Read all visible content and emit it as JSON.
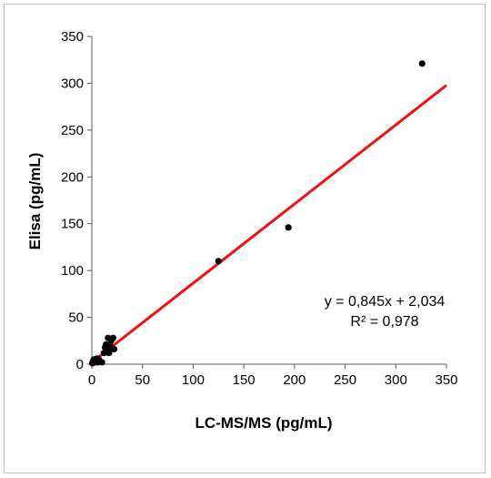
{
  "chart_data": {
    "type": "scatter",
    "title": "",
    "xlabel": "LC-MS/MS (pg/mL)",
    "ylabel": "Elisa (pg/mL)",
    "xlim": [
      0,
      350
    ],
    "ylim": [
      0,
      350
    ],
    "xticks": [
      0,
      50,
      100,
      150,
      200,
      250,
      300,
      350
    ],
    "yticks": [
      0,
      50,
      100,
      150,
      200,
      250,
      300,
      350
    ],
    "grid": false,
    "legend": "none",
    "points": [
      {
        "x": 0.5,
        "y": 1
      },
      {
        "x": 1,
        "y": 3
      },
      {
        "x": 2,
        "y": 5
      },
      {
        "x": 3,
        "y": 2
      },
      {
        "x": 4,
        "y": 4
      },
      {
        "x": 5,
        "y": 6
      },
      {
        "x": 6,
        "y": 2
      },
      {
        "x": 7,
        "y": 5
      },
      {
        "x": 8,
        "y": 3
      },
      {
        "x": 10,
        "y": 2
      },
      {
        "x": 12,
        "y": 12
      },
      {
        "x": 13,
        "y": 18
      },
      {
        "x": 14,
        "y": 21
      },
      {
        "x": 15,
        "y": 15
      },
      {
        "x": 16,
        "y": 28
      },
      {
        "x": 17,
        "y": 12
      },
      {
        "x": 18,
        "y": 20
      },
      {
        "x": 19,
        "y": 25
      },
      {
        "x": 20,
        "y": 17
      },
      {
        "x": 21,
        "y": 28
      },
      {
        "x": 22,
        "y": 16
      },
      {
        "x": 125,
        "y": 110
      },
      {
        "x": 194,
        "y": 146
      },
      {
        "x": 326,
        "y": 321
      }
    ],
    "trendline": {
      "slope": 0.845,
      "intercept": 2.034,
      "color": "#ee1111"
    },
    "point_color": "#000000",
    "annotation": {
      "equation": "y = 0,845x + 2,034",
      "r_squared": "R² = 0,978"
    }
  }
}
